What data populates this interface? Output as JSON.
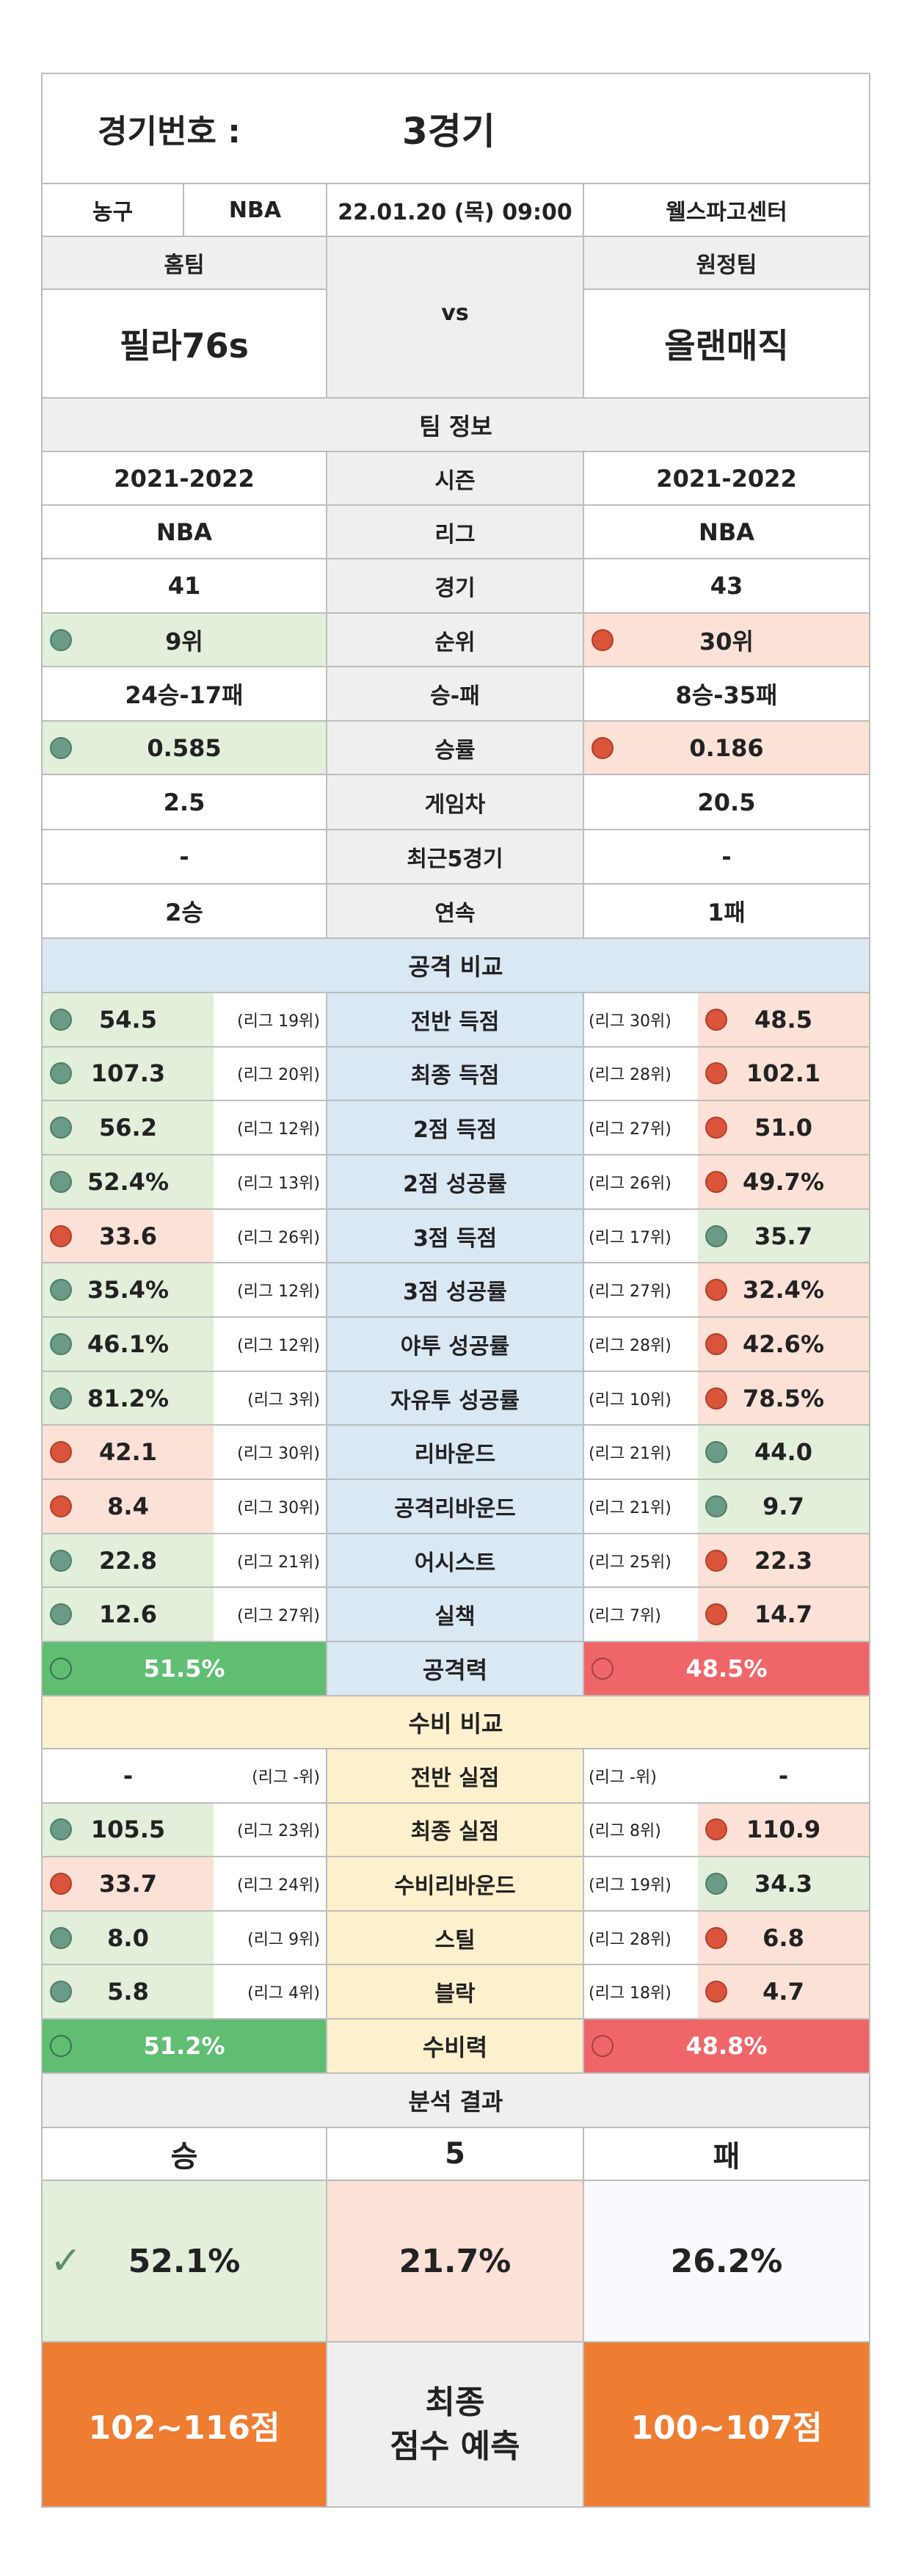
{
  "header": {
    "game_label": "경기번호 :",
    "game_value": "3경기",
    "sport": "농구",
    "league": "NBA",
    "datetime": "22.01.20 (목) 09:00",
    "venue": "웰스파고센터"
  },
  "teams": {
    "home_label": "홈팀",
    "away_label": "원정팀",
    "home_name": "필라76s",
    "away_name": "올랜매직",
    "vs": "vs"
  },
  "team_info": {
    "title": "팀 정보",
    "rows": [
      {
        "home": "2021-2022",
        "label": "시즌",
        "away": "2021-2022"
      },
      {
        "home": "NBA",
        "label": "리그",
        "away": "NBA"
      },
      {
        "home": "41",
        "label": "경기",
        "away": "43"
      },
      {
        "home": "9위",
        "label": "순위",
        "away": "30위"
      },
      {
        "home": "24승-17패",
        "label": "승-패",
        "away": "8승-35패"
      },
      {
        "home": "0.585",
        "label": "승률",
        "away": "0.186"
      },
      {
        "home": "2.5",
        "label": "게임차",
        "away": "20.5"
      },
      {
        "home": "-",
        "label": "최근5경기",
        "away": "-"
      },
      {
        "home": "2승",
        "label": "연속",
        "away": "1패"
      }
    ]
  },
  "attack": {
    "title": "공격 비교",
    "rows": [
      {
        "home": "54.5",
        "home_rank": "(리그 19위)",
        "label": "전반 득점",
        "away_rank": "(리그 30위)",
        "away": "48.5"
      },
      {
        "home": "107.3",
        "home_rank": "(리그 20위)",
        "label": "최종 득점",
        "away_rank": "(리그 28위)",
        "away": "102.1"
      },
      {
        "home": "56.2",
        "home_rank": "(리그 12위)",
        "label": "2점 득점",
        "away_rank": "(리그 27위)",
        "away": "51.0"
      },
      {
        "home": "52.4%",
        "home_rank": "(리그 13위)",
        "label": "2점 성공률",
        "away_rank": "(리그 26위)",
        "away": "49.7%"
      },
      {
        "home": "33.6",
        "home_rank": "(리그 26위)",
        "label": "3점 득점",
        "away_rank": "(리그 17위)",
        "away": "35.7"
      },
      {
        "home": "35.4%",
        "home_rank": "(리그 12위)",
        "label": "3점 성공률",
        "away_rank": "(리그 27위)",
        "away": "32.4%"
      },
      {
        "home": "46.1%",
        "home_rank": "(리그 12위)",
        "label": "야투 성공률",
        "away_rank": "(리그 28위)",
        "away": "42.6%"
      },
      {
        "home": "81.2%",
        "home_rank": "(리그 3위)",
        "label": "자유투 성공률",
        "away_rank": "(리그 10위)",
        "away": "78.5%"
      },
      {
        "home": "42.1",
        "home_rank": "(리그 30위)",
        "label": "리바운드",
        "away_rank": "(리그 21위)",
        "away": "44.0"
      },
      {
        "home": "8.4",
        "home_rank": "(리그 30위)",
        "label": "공격리바운드",
        "away_rank": "(리그 21위)",
        "away": "9.7"
      },
      {
        "home": "22.8",
        "home_rank": "(리그 21위)",
        "label": "어시스트",
        "away_rank": "(리그 25위)",
        "away": "22.3"
      },
      {
        "home": "12.6",
        "home_rank": "(리그 27위)",
        "label": "실책",
        "away_rank": "(리그 7위)",
        "away": "14.7"
      }
    ],
    "power": {
      "home": "51.5%",
      "label": "공격력",
      "away": "48.5%"
    }
  },
  "defense": {
    "title": "수비 비교",
    "rows": [
      {
        "home": "-",
        "home_rank": "(리그 -위)",
        "label": "전반 실점",
        "away_rank": "(리그 -위)",
        "away": "-"
      },
      {
        "home": "105.5",
        "home_rank": "(리그 23위)",
        "label": "최종 실점",
        "away_rank": "(리그 8위)",
        "away": "110.9"
      },
      {
        "home": "33.7",
        "home_rank": "(리그 24위)",
        "label": "수비리바운드",
        "away_rank": "(리그 19위)",
        "away": "34.3"
      },
      {
        "home": "8.0",
        "home_rank": "(리그 9위)",
        "label": "스틸",
        "away_rank": "(리그 28위)",
        "away": "6.8"
      },
      {
        "home": "5.8",
        "home_rank": "(리그 4위)",
        "label": "블락",
        "away_rank": "(리그 18위)",
        "away": "4.7"
      }
    ],
    "power": {
      "home": "51.2%",
      "label": "수비력",
      "away": "48.8%"
    }
  },
  "analysis": {
    "title": "분석 결과",
    "win_label": "승",
    "draw_label": "5",
    "lose_label": "패",
    "win_pct": "52.1%",
    "draw_pct": "21.7%",
    "lose_pct": "26.2%",
    "check_icon": "✓",
    "home_score": "102~116점",
    "score_label_1": "최종",
    "score_label_2": "점수 예측",
    "away_score": "100~107점"
  }
}
